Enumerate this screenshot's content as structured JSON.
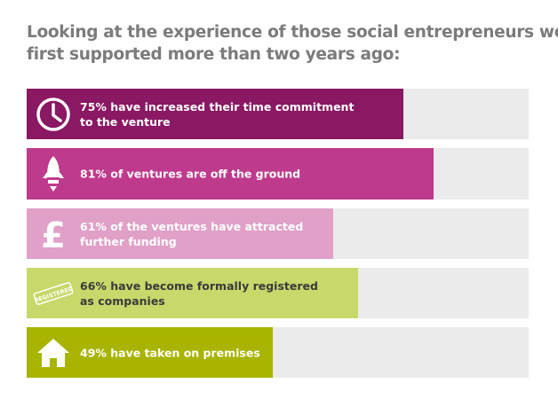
{
  "title_lines": [
    "Looking at the experience of those social entrepreneurs we",
    "first supported more than two years ago:"
  ],
  "chart_data": {
    "type": "bar",
    "orientation": "horizontal",
    "title": "Looking at the experience of those social entrepreneurs we first supported more than two years ago:",
    "categories": [
      "75% have increased their time commitment to the venture",
      "81% of ventures are off the ground",
      "61% of the ventures have attracted further funding",
      "66% have become formally registered as companies",
      "49% have taken on premises"
    ],
    "values": [
      75,
      81,
      61,
      66,
      49
    ],
    "unit": "%",
    "xlim": [
      0,
      100
    ],
    "grid": false,
    "legend": "none"
  },
  "bars": [
    {
      "label_lines": [
        "75% have increased their time commitment",
        "to the venture"
      ],
      "value": 75,
      "color": "#8a1863",
      "text_color": "#ffffff",
      "icon": "clock-icon",
      "icon_color": "#ffffff"
    },
    {
      "label_lines": [
        "81% of ventures are off the ground"
      ],
      "value": 81,
      "color": "#be3a8c",
      "text_color": "#ffffff",
      "icon": "rocket-icon",
      "icon_color": "#ffffff"
    },
    {
      "label_lines": [
        "61% of the ventures have attracted",
        "further funding"
      ],
      "value": 61,
      "color": "#e0a0c8",
      "text_color": "#ffffff",
      "icon": "pound-icon",
      "icon_color": "#ffffff"
    },
    {
      "label_lines": [
        "66% have become formally registered",
        "as companies"
      ],
      "value": 66,
      "color": "#c8d86a",
      "text_color": "#3a3a3a",
      "icon": "registered-stamp-icon",
      "icon_color": "#ffffff",
      "icon_text": "REGISTERED"
    },
    {
      "label_lines": [
        "49% have taken on premises"
      ],
      "value": 49,
      "color": "#a8b400",
      "text_color": "#ffffff",
      "icon": "house-icon",
      "icon_color": "#ffffff"
    }
  ]
}
